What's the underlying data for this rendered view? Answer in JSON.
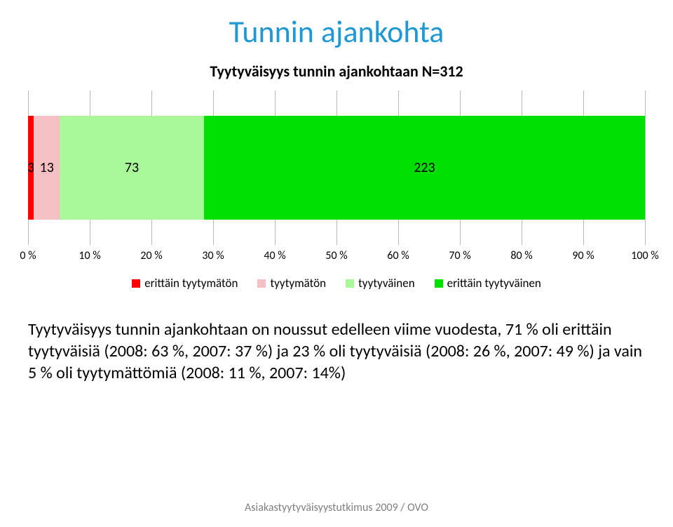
{
  "title": {
    "text": "Tunnin ajankohta",
    "color": "#1f98d4",
    "fontsize": 44,
    "fontweight": 400
  },
  "subtitle": {
    "text": "Tyytyväisyys tunnin ajankohtaan N=312",
    "color": "#000000",
    "fontsize": 22,
    "fontweight": "bold"
  },
  "chart": {
    "type": "stacked-bar-horizontal",
    "total": 312,
    "background_color": "#ffffff",
    "grid_color": "#b7b7b7",
    "xlim": [
      0,
      100
    ],
    "xtick_step": 10,
    "xtick_labels": [
      "0 %",
      "10 %",
      "20 %",
      "30 %",
      "40 %",
      "50 %",
      "60 %",
      "70 %",
      "80 %",
      "90 %",
      "100 %"
    ],
    "tick_fontsize": 16,
    "tick_color": "#000000",
    "bar_label_fontsize": 20,
    "bar_label_color": "#000000",
    "segments": [
      {
        "key": "erittain_tyytymaton",
        "value": 3,
        "label": "3",
        "color": "#ff0000"
      },
      {
        "key": "tyytymaton",
        "value": 13,
        "label": "13",
        "color": "#f5bfc3"
      },
      {
        "key": "tyytyvainen",
        "value": 73,
        "label": "73",
        "color": "#a9f798"
      },
      {
        "key": "erittain_tyytyvainen",
        "value": 223,
        "label": "223",
        "color": "#00e000"
      }
    ],
    "legend": {
      "fontsize": 17,
      "items": [
        {
          "label": "erittäin tyytymätön",
          "color": "#ff0000"
        },
        {
          "label": "tyytymätön",
          "color": "#f5bfc3"
        },
        {
          "label": "tyytyväinen",
          "color": "#a9f798"
        },
        {
          "label": "erittäin tyytyväinen",
          "color": "#00e000"
        }
      ]
    }
  },
  "body": {
    "text": "Tyytyväisyys tunnin ajankohtaan on noussut edelleen viime vuodesta, 71 % oli erittäin tyytyväisiä (2008: 63 %, 2007: 37 %) ja 23 % oli tyytyväisiä (2008: 26 %, 2007: 49 %) ja vain 5 % oli tyytymättömiä (2008: 11 %, 2007: 14%)",
    "fontsize": 24,
    "color": "#000000"
  },
  "footer": {
    "text": "Asiakastyytyväisyystutkimus 2009 / OVO",
    "fontsize": 16,
    "color": "#7f7f7f"
  }
}
